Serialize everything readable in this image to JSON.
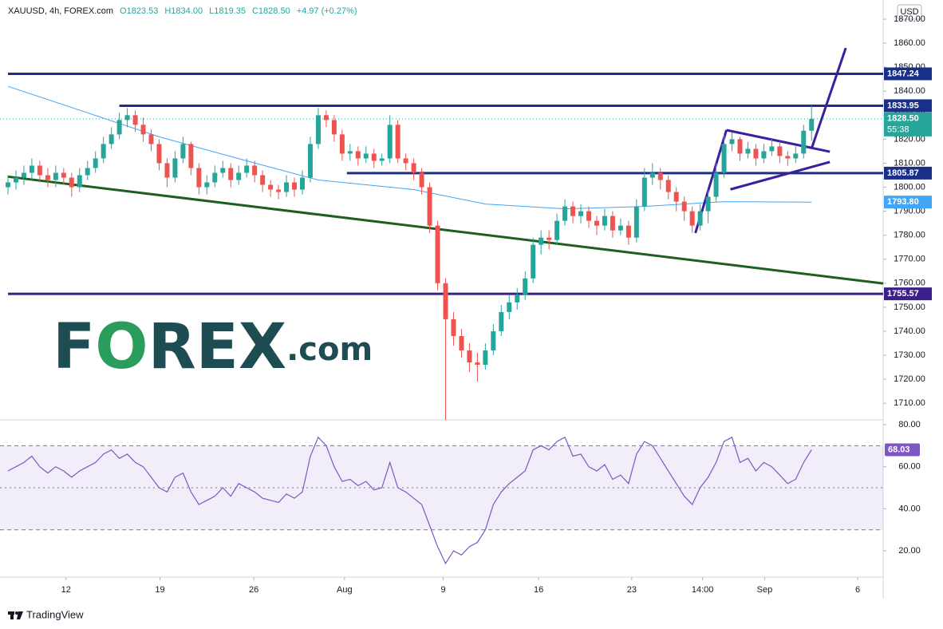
{
  "chart_data": {
    "type": "candlestick",
    "symbol": "XAUUSD, 4h, FOREX.com",
    "ohlc_header": [
      "O1823.53",
      "H1834.00",
      "L1819.35",
      "C1828.50",
      "+4.97 (+0.27%)"
    ],
    "currency": "USD",
    "logo": [
      "F",
      "O",
      "REX",
      ".com"
    ],
    "footer": "TradingView",
    "up_color": "#26a69a",
    "down_color": "#ef5350",
    "xlim": [
      0,
      110
    ],
    "xticks": [
      {
        "value": 7.3,
        "label": "12"
      },
      {
        "value": 19.1,
        "label": "19"
      },
      {
        "value": 30.9,
        "label": "26"
      },
      {
        "value": 42.3,
        "label": "Aug"
      },
      {
        "value": 54.7,
        "label": "9"
      },
      {
        "value": 66.7,
        "label": "16"
      },
      {
        "value": 78.4,
        "label": "23"
      },
      {
        "value": 87.3,
        "label": "14:00"
      },
      {
        "value": 95.1,
        "label": "Sep"
      },
      {
        "value": 106.8,
        "label": "6"
      }
    ],
    "ylim": [
      1703.4,
      1878
    ],
    "yticks": [
      {
        "value": 1710,
        "label": "1710.00"
      },
      {
        "value": 1720,
        "label": "1720.00"
      },
      {
        "value": 1730,
        "label": "1730.00"
      },
      {
        "value": 1740,
        "label": "1740.00"
      },
      {
        "value": 1750,
        "label": "1750.00"
      },
      {
        "value": 1760,
        "label": "1760.00"
      },
      {
        "value": 1770,
        "label": "1770.00"
      },
      {
        "value": 1780,
        "label": "1780.00"
      },
      {
        "value": 1790,
        "label": "1790.00"
      },
      {
        "value": 1800,
        "label": "1800.00"
      },
      {
        "value": 1810,
        "label": "1810.00"
      },
      {
        "value": 1820,
        "label": "1820.00"
      },
      {
        "value": 1830,
        "label": "1830.00"
      },
      {
        "value": 1840,
        "label": "1840.00"
      },
      {
        "value": 1850,
        "label": "1850.00"
      },
      {
        "value": 1860,
        "label": "1860.00"
      },
      {
        "value": 1870,
        "label": "1870.00"
      }
    ],
    "candles": [
      [
        1800,
        1805,
        1797,
        1802
      ],
      [
        1802,
        1807,
        1799,
        1804
      ],
      [
        1804,
        1809,
        1801,
        1806
      ],
      [
        1806,
        1812,
        1803,
        1809
      ],
      [
        1809,
        1811,
        1802,
        1805
      ],
      [
        1805,
        1808,
        1800,
        1803
      ],
      [
        1803,
        1809,
        1800,
        1806
      ],
      [
        1806,
        1808,
        1801,
        1804
      ],
      [
        1804,
        1806,
        1796,
        1800
      ],
      [
        1800,
        1808,
        1798,
        1805
      ],
      [
        1805,
        1811,
        1803,
        1808
      ],
      [
        1808,
        1815,
        1806,
        1812
      ],
      [
        1812,
        1821,
        1810,
        1818
      ],
      [
        1818,
        1825,
        1816,
        1822
      ],
      [
        1822,
        1831,
        1820,
        1828
      ],
      [
        1828,
        1833,
        1825,
        1830
      ],
      [
        1830,
        1832,
        1823,
        1826
      ],
      [
        1826,
        1829,
        1819,
        1822
      ],
      [
        1822,
        1824,
        1815,
        1818
      ],
      [
        1818,
        1820,
        1807,
        1810
      ],
      [
        1810,
        1812,
        1800,
        1804
      ],
      [
        1804,
        1815,
        1802,
        1812
      ],
      [
        1812,
        1821,
        1810,
        1818
      ],
      [
        1818,
        1819,
        1805,
        1808
      ],
      [
        1808,
        1810,
        1797,
        1800
      ],
      [
        1800,
        1805,
        1797,
        1802
      ],
      [
        1802,
        1809,
        1800,
        1806
      ],
      [
        1806,
        1811,
        1804,
        1808
      ],
      [
        1808,
        1810,
        1800,
        1803
      ],
      [
        1803,
        1809,
        1801,
        1806
      ],
      [
        1806,
        1812,
        1804,
        1809
      ],
      [
        1809,
        1811,
        1802,
        1805
      ],
      [
        1805,
        1807,
        1798,
        1801
      ],
      [
        1801,
        1803,
        1796,
        1799
      ],
      [
        1799,
        1801,
        1795,
        1798
      ],
      [
        1798,
        1805,
        1796,
        1802
      ],
      [
        1802,
        1804,
        1796,
        1799
      ],
      [
        1799,
        1807,
        1797,
        1804
      ],
      [
        1804,
        1821,
        1802,
        1818
      ],
      [
        1818,
        1833,
        1816,
        1830
      ],
      [
        1830,
        1832,
        1825,
        1828
      ],
      [
        1828,
        1830,
        1819,
        1822
      ],
      [
        1822,
        1824,
        1811,
        1814
      ],
      [
        1814,
        1818,
        1811,
        1815
      ],
      [
        1815,
        1817,
        1809,
        1812
      ],
      [
        1812,
        1817,
        1810,
        1814
      ],
      [
        1814,
        1816,
        1808,
        1811
      ],
      [
        1811,
        1814,
        1809,
        1812
      ],
      [
        1812,
        1830,
        1810,
        1826
      ],
      [
        1826,
        1828,
        1810,
        1812
      ],
      [
        1812,
        1814,
        1807,
        1810
      ],
      [
        1810,
        1812,
        1803,
        1806
      ],
      [
        1806,
        1808,
        1797,
        1800
      ],
      [
        1800,
        1802,
        1781,
        1784
      ],
      [
        1784,
        1786,
        1757,
        1760
      ],
      [
        1760,
        1762,
        1703,
        1745
      ],
      [
        1745,
        1748,
        1734,
        1738
      ],
      [
        1738,
        1741,
        1729,
        1732
      ],
      [
        1732,
        1735,
        1723,
        1727
      ],
      [
        1727,
        1731,
        1719,
        1726
      ],
      [
        1726,
        1735,
        1724,
        1732
      ],
      [
        1732,
        1743,
        1730,
        1740
      ],
      [
        1740,
        1751,
        1738,
        1748
      ],
      [
        1748,
        1755,
        1745,
        1752
      ],
      [
        1752,
        1758,
        1749,
        1755
      ],
      [
        1755,
        1765,
        1753,
        1762
      ],
      [
        1762,
        1779,
        1760,
        1776
      ],
      [
        1776,
        1782,
        1772,
        1779
      ],
      [
        1779,
        1782,
        1774,
        1778
      ],
      [
        1778,
        1789,
        1776,
        1786
      ],
      [
        1786,
        1795,
        1784,
        1792
      ],
      [
        1792,
        1794,
        1785,
        1788
      ],
      [
        1788,
        1793,
        1785,
        1790
      ],
      [
        1790,
        1792,
        1783,
        1786
      ],
      [
        1786,
        1788,
        1780,
        1784
      ],
      [
        1784,
        1791,
        1782,
        1788
      ],
      [
        1788,
        1790,
        1779,
        1782
      ],
      [
        1782,
        1787,
        1780,
        1784
      ],
      [
        1784,
        1786,
        1776,
        1779
      ],
      [
        1779,
        1795,
        1777,
        1792
      ],
      [
        1792,
        1808,
        1790,
        1804
      ],
      [
        1804,
        1810,
        1801,
        1806
      ],
      [
        1806,
        1808,
        1799,
        1803
      ],
      [
        1803,
        1805,
        1795,
        1798
      ],
      [
        1798,
        1800,
        1790,
        1794
      ],
      [
        1794,
        1796,
        1786,
        1790
      ],
      [
        1790,
        1792,
        1781,
        1784
      ],
      [
        1784,
        1793,
        1782,
        1790
      ],
      [
        1790,
        1799,
        1785,
        1796
      ],
      [
        1796,
        1810,
        1794,
        1806
      ],
      [
        1806,
        1822,
        1804,
        1818
      ],
      [
        1818,
        1823,
        1815,
        1820
      ],
      [
        1820,
        1821,
        1811,
        1814
      ],
      [
        1814,
        1819,
        1812,
        1816
      ],
      [
        1816,
        1818,
        1809,
        1812
      ],
      [
        1812,
        1818,
        1810,
        1815
      ],
      [
        1815,
        1820,
        1813,
        1817
      ],
      [
        1817,
        1819,
        1810,
        1813
      ],
      [
        1813,
        1815,
        1809,
        1812
      ],
      [
        1812,
        1817,
        1810,
        1814
      ],
      [
        1814,
        1826,
        1812,
        1823.53
      ],
      [
        1823.53,
        1834,
        1819.35,
        1828.5
      ]
    ],
    "last": {
      "value": 1828.5,
      "label": "1828.50",
      "countdown": "55:38",
      "color": "#26a69a"
    },
    "ma": {
      "color": "#42a5f5",
      "x": [
        0,
        10,
        19,
        30,
        39,
        51,
        60,
        70,
        80,
        90,
        101
      ],
      "values": [
        1842,
        1831,
        1821,
        1811,
        1803,
        1799,
        1793,
        1791,
        1792,
        1794,
        1793.8
      ],
      "label": "1793.80"
    },
    "levels": [
      {
        "value": 1847.24,
        "from": 0,
        "color": "#1a2f8a"
      },
      {
        "value": 1833.95,
        "from": 14,
        "color": "#1a2f8a"
      },
      {
        "value": 1805.87,
        "from": 42.6,
        "color": "#1a2f8a"
      },
      {
        "value": 1755.57,
        "from": 0,
        "color": "#3b1f8c"
      }
    ],
    "drawings": [
      {
        "color": "#1e5e20",
        "x": [
          0,
          110
        ],
        "y": [
          1804.4,
          1759.9
        ]
      },
      {
        "color": "#3b1fa0",
        "x": [
          86.4,
          90.3
        ],
        "y": [
          1780.9,
          1823.8
        ]
      },
      {
        "color": "#3b1fa0",
        "x": [
          90.3,
          103.3
        ],
        "y": [
          1823.8,
          1814.8
        ]
      },
      {
        "color": "#3b1fa0",
        "x": [
          90.8,
          103.3
        ],
        "y": [
          1799.1,
          1810.5
        ]
      },
      {
        "color": "#3b1fa0",
        "x": [
          101,
          105.3
        ],
        "y": [
          1816.1,
          1858
        ]
      }
    ],
    "rsi": {
      "color": "#7e57c2",
      "ylim": [
        7.5,
        81.9
      ],
      "yticks": [
        {
          "value": 20,
          "label": "20.00"
        },
        {
          "value": 40,
          "label": "40.00"
        },
        {
          "value": 60,
          "label": "60.00"
        },
        {
          "value": 80,
          "label": "80.00"
        }
      ],
      "levels": [
        70,
        50,
        30
      ],
      "values": [
        58,
        60,
        62,
        65,
        60,
        57,
        60,
        58,
        55,
        58,
        60,
        62,
        66,
        68,
        64,
        66,
        62,
        60,
        55,
        50,
        48,
        55,
        57,
        48,
        42,
        44,
        46,
        50,
        46,
        52,
        50,
        48,
        45,
        44,
        43,
        47,
        45,
        48,
        65,
        74,
        70,
        60,
        53,
        54,
        51,
        53,
        49,
        50,
        62,
        50,
        48,
        45,
        42,
        32,
        22,
        14,
        20,
        18,
        22,
        24,
        30,
        42,
        48,
        52,
        55,
        58,
        68,
        70,
        68,
        72,
        74,
        65,
        66,
        60,
        58,
        61,
        54,
        56,
        52,
        66,
        72,
        70,
        64,
        58,
        52,
        46,
        42,
        50,
        55,
        62,
        72,
        74,
        62,
        64,
        58,
        62,
        60,
        56,
        52,
        54,
        62,
        68.03
      ]
    }
  }
}
